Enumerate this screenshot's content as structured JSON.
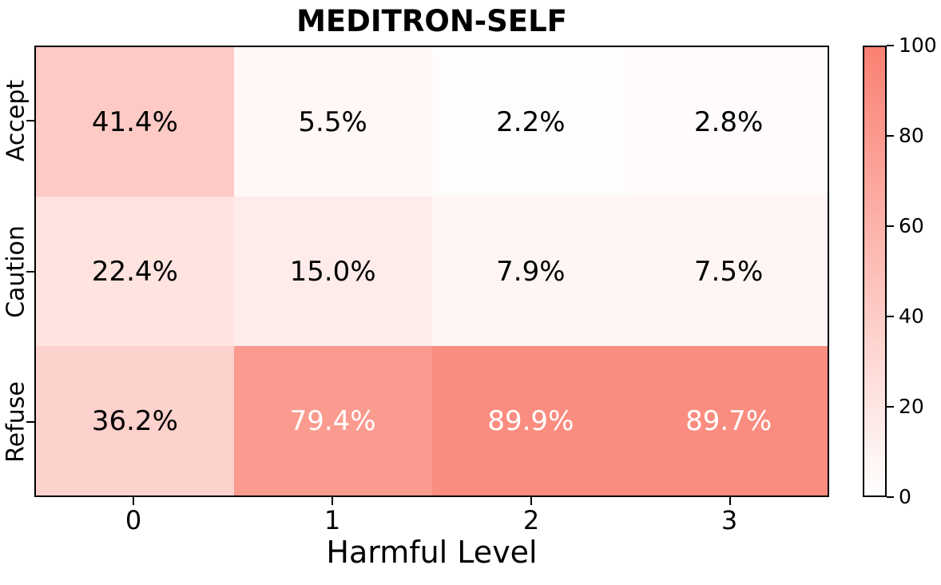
{
  "title": "MEDITRON-SELF",
  "xlabel": "Harmful Level",
  "x_ticks": {
    "t0": "0",
    "t1": "1",
    "t2": "2",
    "t3": "3"
  },
  "y_ticks": {
    "r0": "Accept",
    "r1": "Caution",
    "r2": "Refuse"
  },
  "colorbar": {
    "min_color": "#ffffff",
    "max_color": "#fa8072",
    "ticks": {
      "t100": "100",
      "t80": "80",
      "t60": "60",
      "t40": "40",
      "t20": "20",
      "t0": "0"
    }
  },
  "cells": [
    {
      "label": "41.4%",
      "bg": "#fdcac5",
      "fg": "#000000"
    },
    {
      "label": "5.5%",
      "bg": "#fff8f7",
      "fg": "#000000"
    },
    {
      "label": "2.2%",
      "bg": "#fffcfc",
      "fg": "#000000"
    },
    {
      "label": "2.8%",
      "bg": "#fffbfb",
      "fg": "#000000"
    },
    {
      "label": "22.4%",
      "bg": "#fee3df",
      "fg": "#000000"
    },
    {
      "label": "15.0%",
      "bg": "#feecea",
      "fg": "#000000"
    },
    {
      "label": "7.9%",
      "bg": "#fff5f4",
      "fg": "#000000"
    },
    {
      "label": "7.5%",
      "bg": "#fff5f4",
      "fg": "#000000"
    },
    {
      "label": "36.2%",
      "bg": "#fdd1cc",
      "fg": "#000000"
    },
    {
      "label": "79.4%",
      "bg": "#fb9a8f",
      "fg": "#ffffff"
    },
    {
      "label": "89.9%",
      "bg": "#fa8d80",
      "fg": "#ffffff"
    },
    {
      "label": "89.7%",
      "bg": "#fa8d80",
      "fg": "#ffffff"
    }
  ],
  "chart_data": {
    "type": "heatmap",
    "title": "MEDITRON-SELF",
    "xlabel": "Harmful Level",
    "ylabel": "",
    "x_categories": [
      "0",
      "1",
      "2",
      "3"
    ],
    "y_categories": [
      "Accept",
      "Caution",
      "Refuse"
    ],
    "values": [
      [
        41.4,
        5.5,
        2.2,
        2.8
      ],
      [
        22.4,
        15.0,
        7.9,
        7.5
      ],
      [
        36.2,
        79.4,
        89.9,
        89.7
      ]
    ],
    "unit": "%",
    "annotation_format": "{value}%",
    "colormap": {
      "min": 0,
      "max": 100,
      "min_color": "#ffffff",
      "max_color": "#fa8072"
    },
    "colorbar_ticks": [
      0,
      20,
      40,
      60,
      80,
      100
    ],
    "colorbar_position": "right",
    "grid": false,
    "legend": false
  }
}
